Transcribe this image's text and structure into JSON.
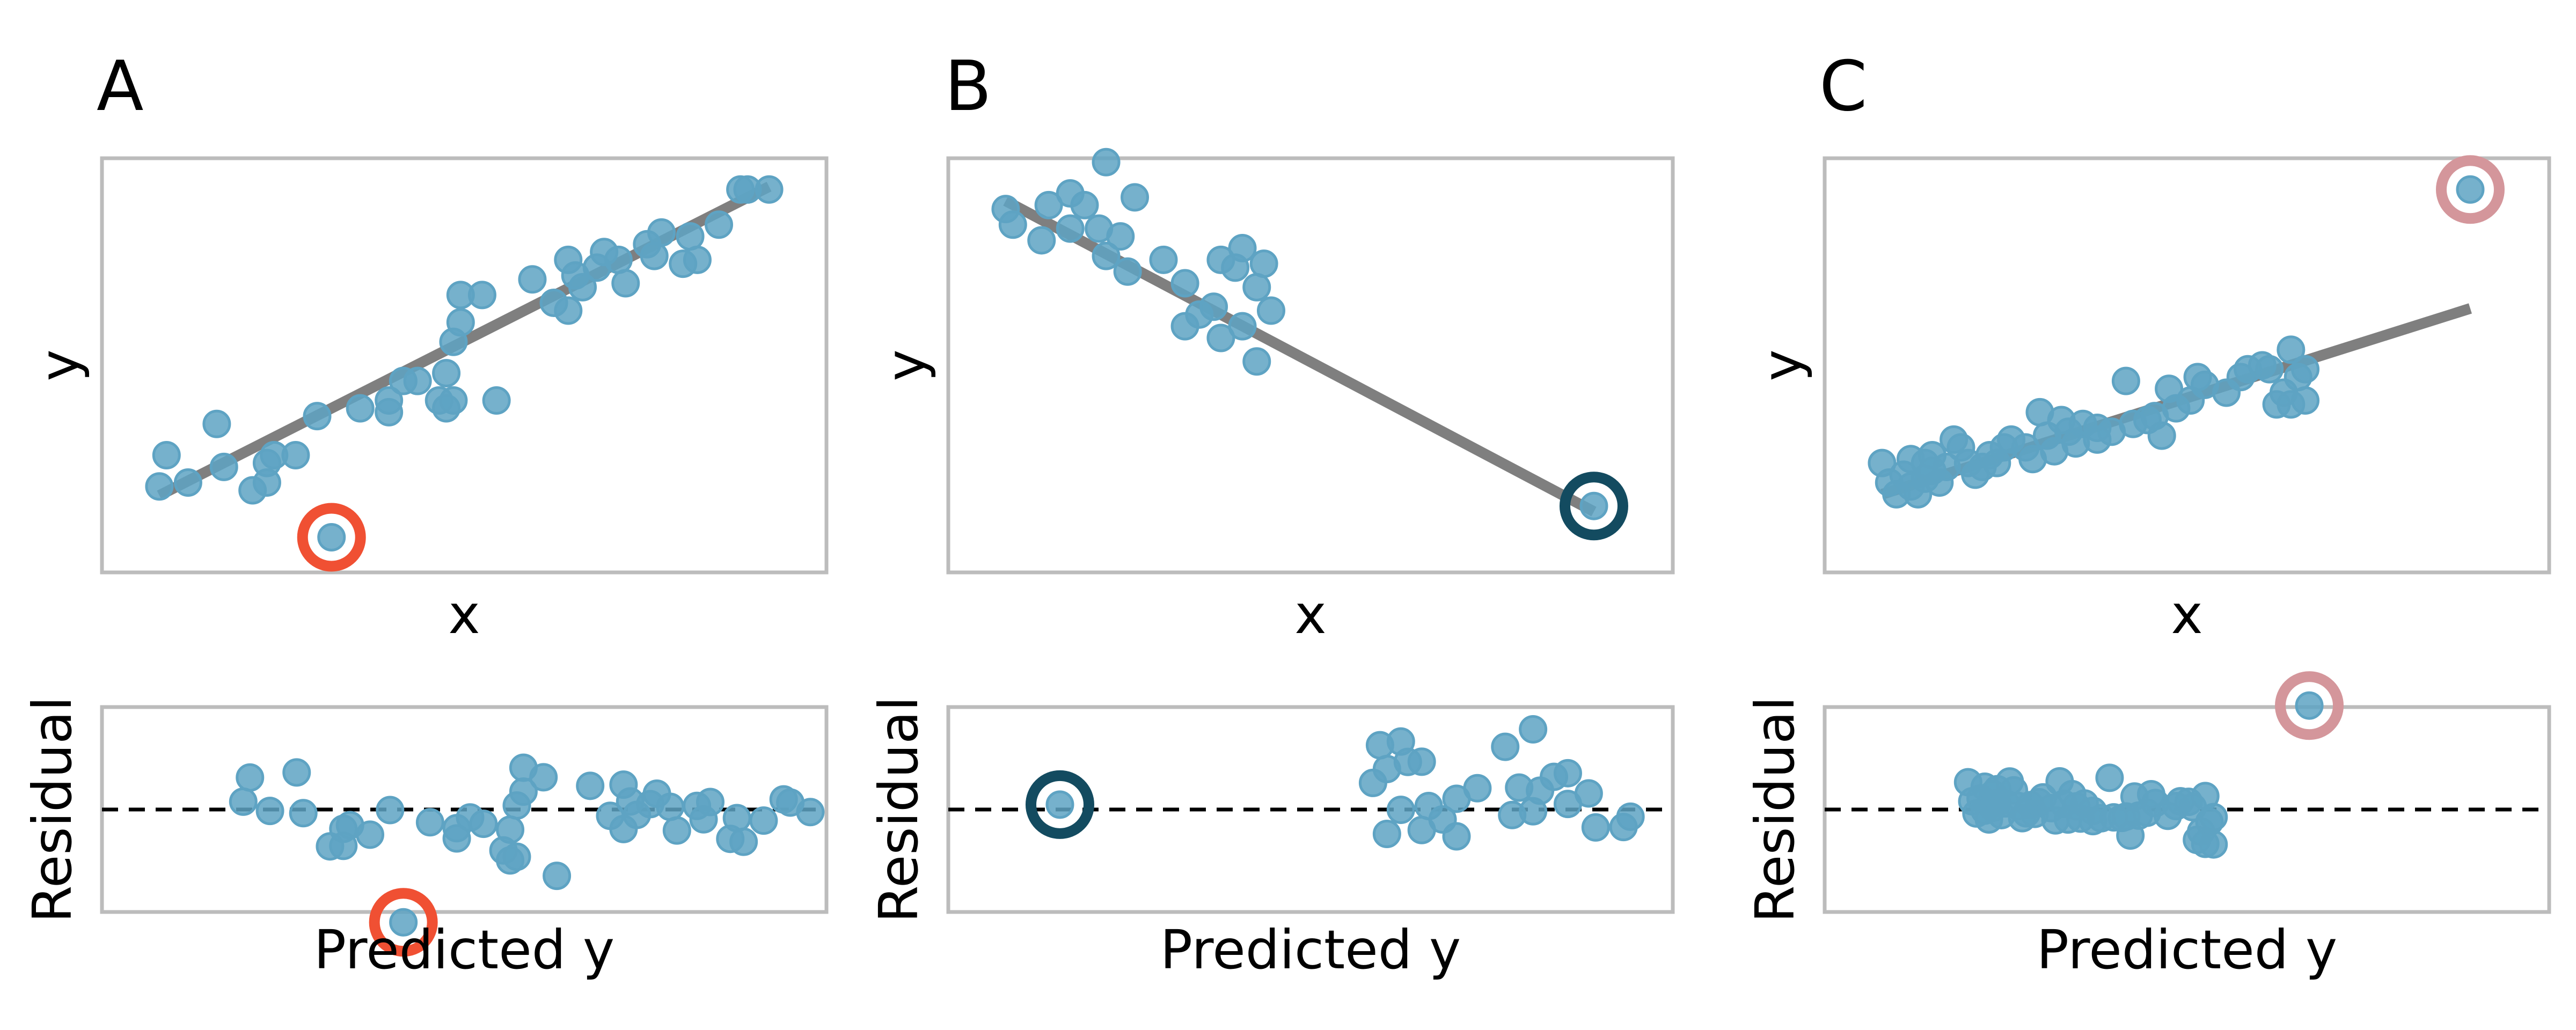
{
  "style": {
    "point_color": "#5ea3c3",
    "fit_color": "#7f7f7f",
    "zero_line_color": "#000000",
    "frame_color": "#bcbcbc"
  },
  "chart_data": [
    {
      "panel": "A",
      "type": "scatter",
      "xlabel": "x",
      "ylabel": "y",
      "residual_xlabel": "Predicted y",
      "residual_ylabel": "Residual",
      "highlight_color": "#f05033",
      "xlim": [
        -0.8,
        9.3
      ],
      "ylim": [
        -0.8,
        9.8
      ],
      "residual_xlim": [
        -0.8,
        9.3
      ],
      "residual_ylim": [
        -3.0,
        3.0
      ],
      "fit": {
        "slope": 0.93,
        "intercept": 1.17
      },
      "points": [
        {
          "x": 0.0,
          "y": 1.4
        },
        {
          "x": 0.1,
          "y": 2.2
        },
        {
          "x": 0.4,
          "y": 1.5
        },
        {
          "x": 0.8,
          "y": 3.0
        },
        {
          "x": 0.9,
          "y": 1.9
        },
        {
          "x": 1.3,
          "y": 1.3
        },
        {
          "x": 1.5,
          "y": 1.5
        },
        {
          "x": 1.5,
          "y": 2.0
        },
        {
          "x": 1.6,
          "y": 2.2
        },
        {
          "x": 1.9,
          "y": 2.2
        },
        {
          "x": 2.2,
          "y": 3.2
        },
        {
          "x": 2.8,
          "y": 3.4
        },
        {
          "x": 3.2,
          "y": 3.3
        },
        {
          "x": 3.2,
          "y": 3.6
        },
        {
          "x": 3.4,
          "y": 4.1
        },
        {
          "x": 3.6,
          "y": 4.1
        },
        {
          "x": 3.9,
          "y": 3.6
        },
        {
          "x": 4.0,
          "y": 4.3
        },
        {
          "x": 4.0,
          "y": 3.4
        },
        {
          "x": 4.1,
          "y": 3.6
        },
        {
          "x": 4.1,
          "y": 5.1
        },
        {
          "x": 4.2,
          "y": 6.3
        },
        {
          "x": 4.2,
          "y": 5.6
        },
        {
          "x": 4.5,
          "y": 6.3
        },
        {
          "x": 4.7,
          "y": 3.6
        },
        {
          "x": 5.2,
          "y": 6.7
        },
        {
          "x": 5.5,
          "y": 6.1
        },
        {
          "x": 5.7,
          "y": 5.9
        },
        {
          "x": 5.7,
          "y": 7.2
        },
        {
          "x": 5.8,
          "y": 6.8
        },
        {
          "x": 5.9,
          "y": 6.5
        },
        {
          "x": 6.1,
          "y": 7.0
        },
        {
          "x": 6.2,
          "y": 7.4
        },
        {
          "x": 6.4,
          "y": 7.2
        },
        {
          "x": 6.5,
          "y": 6.6
        },
        {
          "x": 6.8,
          "y": 7.6
        },
        {
          "x": 6.9,
          "y": 7.3
        },
        {
          "x": 7.0,
          "y": 7.9
        },
        {
          "x": 7.3,
          "y": 7.1
        },
        {
          "x": 7.4,
          "y": 7.8
        },
        {
          "x": 7.5,
          "y": 7.2
        },
        {
          "x": 7.8,
          "y": 8.1
        },
        {
          "x": 8.1,
          "y": 9.0
        },
        {
          "x": 8.2,
          "y": 9.0
        },
        {
          "x": 8.5,
          "y": 9.0
        }
      ],
      "highlight": {
        "x": 2.4,
        "y": 0.1
      }
    },
    {
      "panel": "B",
      "type": "scatter",
      "xlabel": "x",
      "ylabel": "y",
      "residual_xlabel": "Predicted y",
      "residual_ylabel": "Residual",
      "highlight_color": "#134b60",
      "xlim": [
        -0.8,
        9.3
      ],
      "ylim": [
        -0.8,
        9.8
      ],
      "residual_xlim": [
        -0.8,
        9.3
      ],
      "residual_ylim": [
        -3.0,
        3.0
      ],
      "fit": {
        "slope": -0.97,
        "intercept": 8.71
      },
      "points": [
        {
          "x": 0.0,
          "y": 8.5
        },
        {
          "x": 0.1,
          "y": 8.1
        },
        {
          "x": 0.5,
          "y": 7.7
        },
        {
          "x": 0.6,
          "y": 8.6
        },
        {
          "x": 0.9,
          "y": 8.9
        },
        {
          "x": 0.9,
          "y": 8.0
        },
        {
          "x": 1.1,
          "y": 8.6
        },
        {
          "x": 1.3,
          "y": 8.0
        },
        {
          "x": 1.4,
          "y": 7.3
        },
        {
          "x": 1.4,
          "y": 9.7
        },
        {
          "x": 1.6,
          "y": 7.8
        },
        {
          "x": 1.7,
          "y": 6.9
        },
        {
          "x": 1.8,
          "y": 8.8
        },
        {
          "x": 2.2,
          "y": 7.2
        },
        {
          "x": 2.5,
          "y": 5.5
        },
        {
          "x": 2.5,
          "y": 6.6
        },
        {
          "x": 2.7,
          "y": 5.8
        },
        {
          "x": 2.9,
          "y": 6.0
        },
        {
          "x": 3.0,
          "y": 5.2
        },
        {
          "x": 3.0,
          "y": 7.2
        },
        {
          "x": 3.2,
          "y": 7.0
        },
        {
          "x": 3.3,
          "y": 5.5
        },
        {
          "x": 3.3,
          "y": 7.5
        },
        {
          "x": 3.5,
          "y": 6.5
        },
        {
          "x": 3.5,
          "y": 4.6
        },
        {
          "x": 3.6,
          "y": 7.1
        },
        {
          "x": 3.7,
          "y": 5.9
        }
      ],
      "highlight": {
        "x": 8.2,
        "y": 0.9
      }
    },
    {
      "panel": "C",
      "type": "scatter",
      "xlabel": "x",
      "ylabel": "y",
      "residual_xlabel": "Predicted y",
      "residual_ylabel": "Residual",
      "highlight_color": "#d4969b",
      "xlim": [
        -0.8,
        9.3
      ],
      "ylim": [
        -0.8,
        9.8
      ],
      "residual_xlim": [
        -0.8,
        9.3
      ],
      "residual_ylim": [
        -3.0,
        3.0
      ],
      "fit": {
        "slope": 0.58,
        "intercept": 1.2
      },
      "points": [
        {
          "x": 0.0,
          "y": 2.0
        },
        {
          "x": 0.1,
          "y": 1.5
        },
        {
          "x": 0.2,
          "y": 1.2
        },
        {
          "x": 0.3,
          "y": 1.7
        },
        {
          "x": 0.4,
          "y": 2.1
        },
        {
          "x": 0.4,
          "y": 1.4
        },
        {
          "x": 0.5,
          "y": 1.2
        },
        {
          "x": 0.6,
          "y": 1.6
        },
        {
          "x": 0.6,
          "y": 2.0
        },
        {
          "x": 0.7,
          "y": 1.8
        },
        {
          "x": 0.7,
          "y": 2.2
        },
        {
          "x": 0.8,
          "y": 1.5
        },
        {
          "x": 0.9,
          "y": 1.9
        },
        {
          "x": 1.0,
          "y": 2.6
        },
        {
          "x": 1.1,
          "y": 2.4
        },
        {
          "x": 1.2,
          "y": 2.0
        },
        {
          "x": 1.3,
          "y": 1.7
        },
        {
          "x": 1.4,
          "y": 1.9
        },
        {
          "x": 1.5,
          "y": 2.2
        },
        {
          "x": 1.6,
          "y": 2.0
        },
        {
          "x": 1.7,
          "y": 2.4
        },
        {
          "x": 1.8,
          "y": 2.6
        },
        {
          "x": 2.0,
          "y": 2.4
        },
        {
          "x": 2.1,
          "y": 2.1
        },
        {
          "x": 2.2,
          "y": 3.3
        },
        {
          "x": 2.3,
          "y": 2.7
        },
        {
          "x": 2.4,
          "y": 2.3
        },
        {
          "x": 2.5,
          "y": 3.1
        },
        {
          "x": 2.6,
          "y": 2.8
        },
        {
          "x": 2.7,
          "y": 2.5
        },
        {
          "x": 2.8,
          "y": 3.0
        },
        {
          "x": 3.0,
          "y": 2.6
        },
        {
          "x": 3.0,
          "y": 2.9
        },
        {
          "x": 3.2,
          "y": 2.8
        },
        {
          "x": 3.4,
          "y": 4.1
        },
        {
          "x": 3.5,
          "y": 3.0
        },
        {
          "x": 3.7,
          "y": 3.1
        },
        {
          "x": 3.8,
          "y": 3.2
        },
        {
          "x": 3.9,
          "y": 2.7
        },
        {
          "x": 4.0,
          "y": 3.9
        },
        {
          "x": 4.1,
          "y": 3.4
        },
        {
          "x": 4.3,
          "y": 3.6
        },
        {
          "x": 4.4,
          "y": 4.2
        },
        {
          "x": 4.5,
          "y": 4.0
        },
        {
          "x": 4.8,
          "y": 3.8
        },
        {
          "x": 5.0,
          "y": 4.2
        },
        {
          "x": 5.1,
          "y": 4.4
        },
        {
          "x": 5.3,
          "y": 4.5
        },
        {
          "x": 5.4,
          "y": 4.4
        },
        {
          "x": 5.5,
          "y": 3.5
        },
        {
          "x": 5.6,
          "y": 3.8
        },
        {
          "x": 5.7,
          "y": 4.9
        },
        {
          "x": 5.7,
          "y": 3.5
        },
        {
          "x": 5.8,
          "y": 4.2
        },
        {
          "x": 5.9,
          "y": 4.4
        },
        {
          "x": 5.9,
          "y": 3.6
        }
      ],
      "highlight": {
        "x": 8.2,
        "y": 9.0
      }
    }
  ]
}
